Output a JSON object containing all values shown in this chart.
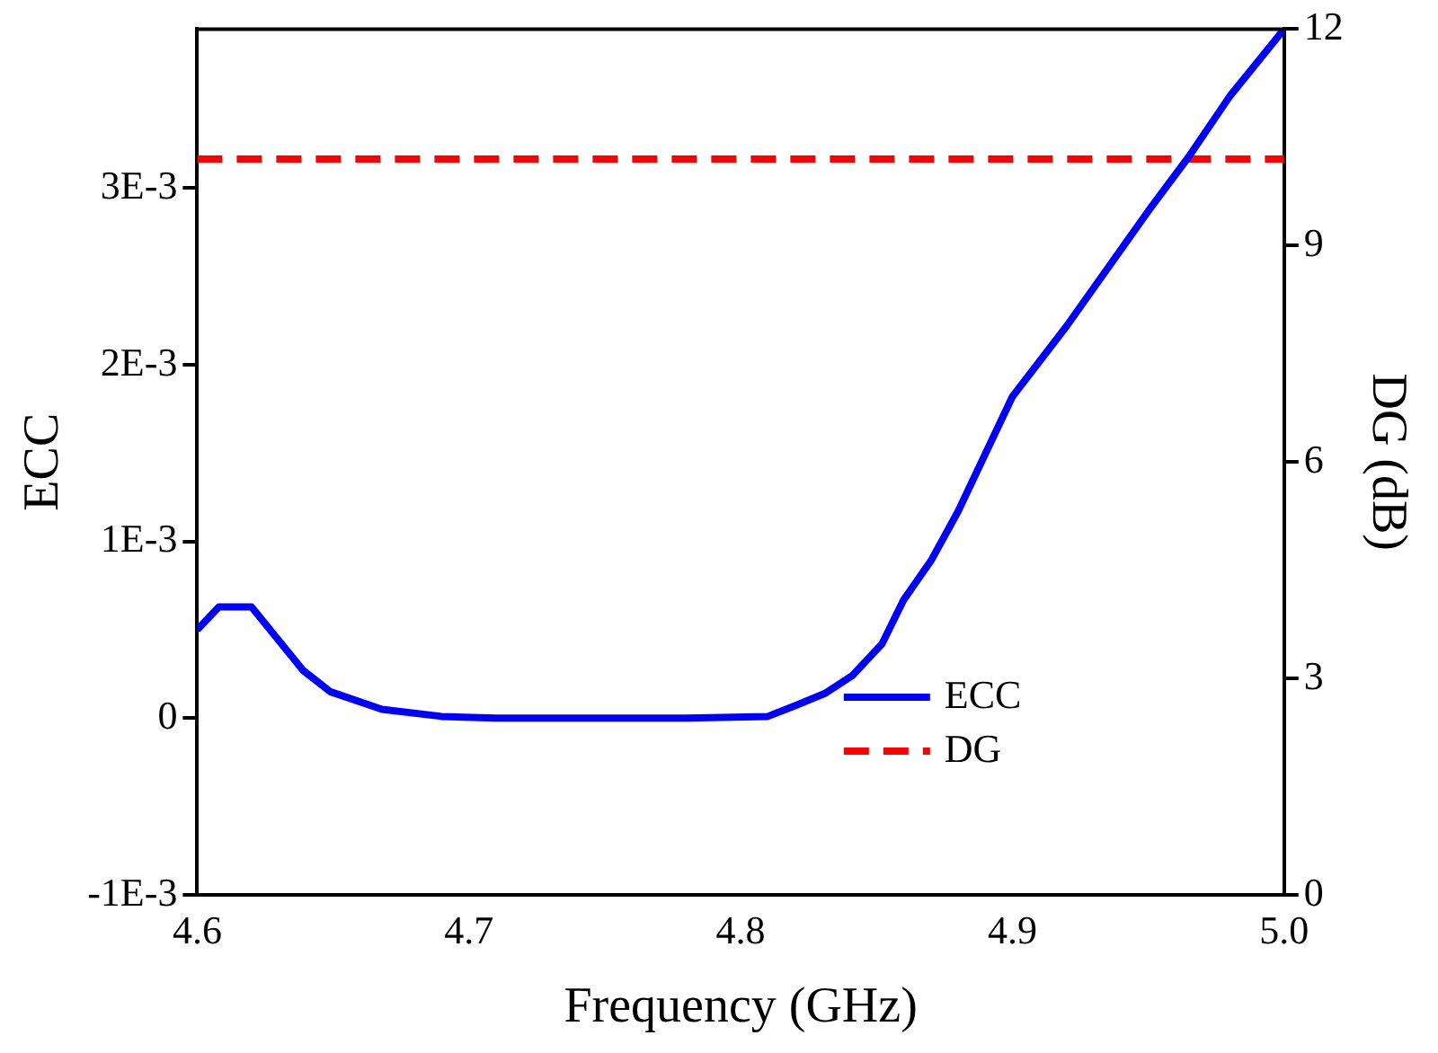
{
  "chart_data": {
    "type": "line",
    "xlabel": "Frequency (GHz)",
    "ylabel": "ECC",
    "y2label": "DG (dB)",
    "xlim": [
      4.6,
      5.0
    ],
    "xticks": [
      {
        "value": 4.6,
        "label": "4.6"
      },
      {
        "value": 4.7,
        "label": "4.7"
      },
      {
        "value": 4.8,
        "label": "4.8"
      },
      {
        "value": 4.9,
        "label": "4.9"
      },
      {
        "value": 5.0,
        "label": "5.0"
      }
    ],
    "ylim": [
      -0.001,
      0.0039
    ],
    "yticks": [
      {
        "value": -0.001,
        "label": "-1E-3"
      },
      {
        "value": 0,
        "label": "0"
      },
      {
        "value": 0.001,
        "label": "1E-3"
      },
      {
        "value": 0.002,
        "label": "2E-3"
      },
      {
        "value": 0.003,
        "label": "3E-3"
      }
    ],
    "y2lim": [
      0,
      12
    ],
    "y2ticks": [
      0,
      3,
      6,
      9,
      12
    ],
    "grid": false,
    "legend": "bottom right",
    "marker": "none",
    "series": [
      {
        "name": "ECC",
        "color": "#0000ff",
        "line_style": "solid",
        "x": [
          4.6,
          4.608,
          4.62,
          4.639,
          4.649,
          4.668,
          4.69,
          4.71,
          4.75,
          4.78,
          4.81,
          4.82,
          4.831,
          4.841,
          4.852,
          4.86,
          4.87,
          4.88,
          4.9,
          4.92,
          4.95,
          4.965,
          4.98,
          5.0
        ],
        "values": [
          0.0005,
          0.00063,
          0.00063,
          0.00027,
          0.00015,
          5e-05,
          1e-05,
          0,
          0,
          0,
          1e-05,
          7e-05,
          0.00014,
          0.00024,
          0.00042,
          0.00067,
          0.00089,
          0.00117,
          0.00182,
          0.00222,
          0.00287,
          0.00318,
          0.00352,
          0.0039
        ]
      },
      {
        "name": "DG",
        "color": "#ff0000",
        "line_style": "dashed",
        "axis": "y2",
        "x": [
          4.6,
          5.0
        ],
        "values": [
          10.2,
          10.2
        ]
      }
    ]
  }
}
